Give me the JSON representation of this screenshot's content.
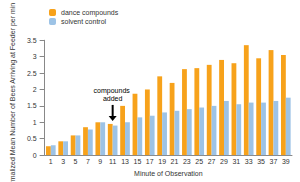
{
  "chart_data": {
    "type": "bar",
    "x_label": "Minute of Observation",
    "y_label": "Normalized Mean Number of Bees Arriving at Feeder per min",
    "categories": [
      "1",
      "3",
      "5",
      "7",
      "9",
      "11",
      "13",
      "15",
      "17",
      "19",
      "21",
      "23",
      "25",
      "27",
      "29",
      "31",
      "33",
      "35",
      "37",
      "39"
    ],
    "series": [
      {
        "name": "dance compounds",
        "color": "#f7a21b",
        "values": [
          0.27,
          0.42,
          0.6,
          0.85,
          1.0,
          0.95,
          1.5,
          1.87,
          2.0,
          2.4,
          2.2,
          2.62,
          2.65,
          2.75,
          2.9,
          2.8,
          3.35,
          2.95,
          3.2,
          3.05
        ]
      },
      {
        "name": "solvent control",
        "color": "#9dc3e6",
        "values": [
          0.3,
          0.42,
          0.6,
          0.78,
          1.0,
          0.9,
          1.0,
          1.15,
          1.2,
          1.3,
          1.35,
          1.4,
          1.45,
          1.5,
          1.65,
          1.55,
          1.6,
          1.6,
          1.65,
          1.75
        ]
      }
    ],
    "ylim": [
      0,
      3.5
    ],
    "yticks": [
      0,
      0.5,
      1,
      1.5,
      2,
      2.5,
      3,
      3.5
    ],
    "grid": false,
    "legend": "top-left",
    "annotations": [
      {
        "text": "compounds added",
        "x": "11"
      }
    ]
  }
}
